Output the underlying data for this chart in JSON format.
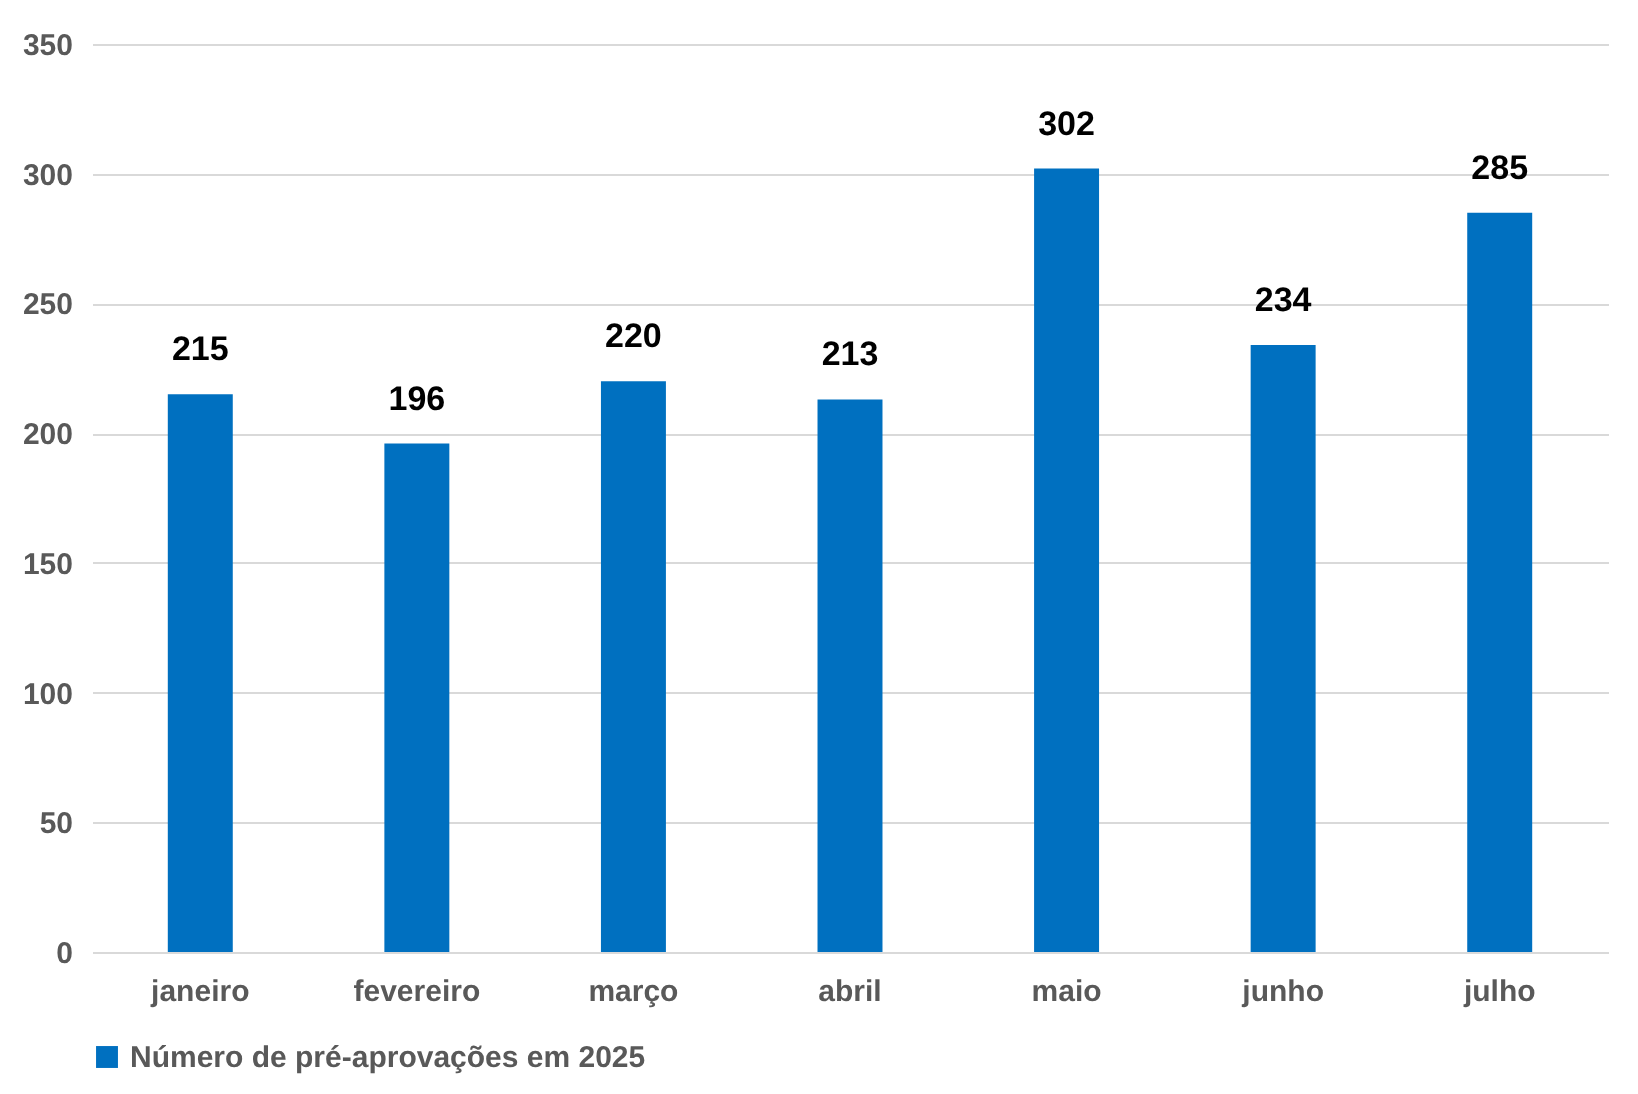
{
  "chart_data": {
    "type": "bar",
    "categories": [
      "janeiro",
      "fevereiro",
      "março",
      "abril",
      "maio",
      "junho",
      "julho"
    ],
    "series": [
      {
        "name": "Número de pré-aprovações em 2025",
        "color": "#0070c0",
        "values": [
          215,
          196,
          220,
          213,
          302,
          234,
          285
        ]
      }
    ],
    "ylim": [
      0,
      350
    ],
    "yticks": [
      0,
      50,
      100,
      150,
      200,
      250,
      300,
      350
    ],
    "grid": "y",
    "legend": "bottom",
    "data_labels": true
  }
}
